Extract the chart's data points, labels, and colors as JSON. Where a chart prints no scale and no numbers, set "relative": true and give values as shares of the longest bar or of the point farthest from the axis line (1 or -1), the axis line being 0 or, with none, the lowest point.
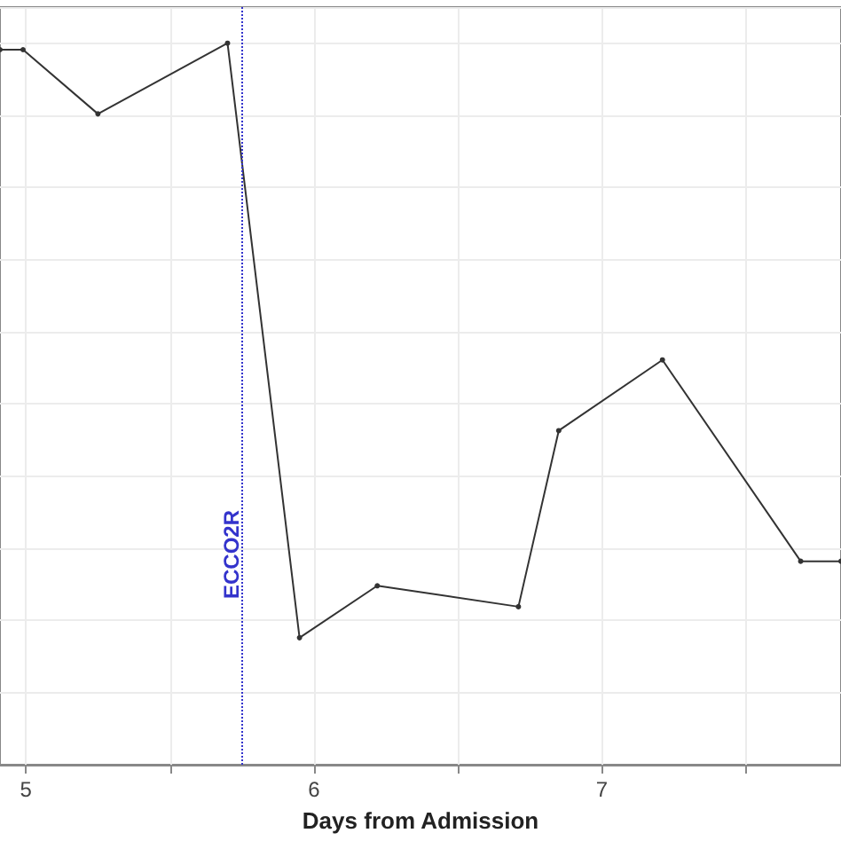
{
  "chart_data": {
    "type": "line",
    "xlabel": "Days from Admission",
    "relative": true,
    "x": [
      4.91,
      4.99,
      5.25,
      5.7,
      5.95,
      6.22,
      6.71,
      6.85,
      7.21,
      7.69,
      7.83
    ],
    "series": [
      {
        "color": "#333333",
        "values": [
          0.991,
          0.991,
          0.902,
          1,
          0.176,
          0.248,
          0.219,
          0.463,
          0.561,
          0.282,
          0.282
        ]
      }
    ],
    "xlim": [
      4.91,
      7.83
    ],
    "xticks": [
      5,
      {
        "value": 5.5,
        "label": null
      },
      6,
      {
        "value": 6.5,
        "label": null
      },
      7,
      {
        "value": 7.5,
        "label": null
      }
    ],
    "ref_lines": [
      {
        "axis": "x",
        "value": 5.75,
        "label": "ECCO2R",
        "color": "#3333cc",
        "line_style": "dotted"
      }
    ],
    "grid": true,
    "marker": "circle",
    "line_style": "solid"
  }
}
